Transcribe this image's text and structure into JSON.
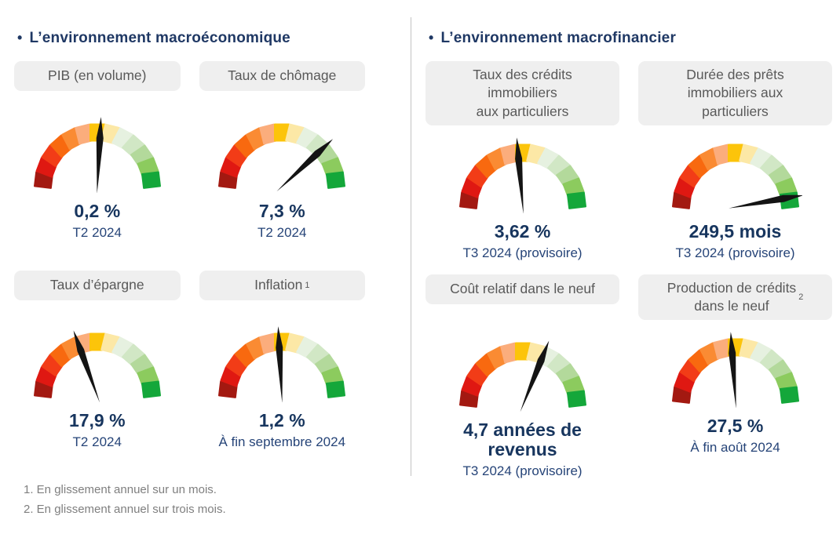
{
  "palette": {
    "background": "#FFFFFF",
    "title_navy": "#1F3864",
    "value_navy": "#17355E",
    "period_navy": "#264478",
    "chip_bg": "#EFEFEF",
    "chip_text": "#595959",
    "footnote_gray": "#7F7F7F",
    "divider_gray": "#C3C3C3",
    "needle_black": "#141414",
    "gauge_segments": [
      "#A31911",
      "#DF1812",
      "#F23C17",
      "#F8690F",
      "#FA8B33",
      "#FBAD7C",
      "#FCC40A",
      "#FCE8A6",
      "#E6F1E0",
      "#D1E7C5",
      "#B3D99B",
      "#8CCB5E",
      "#14A73A"
    ]
  },
  "sections": [
    {
      "bullet": "•",
      "title": "L’environnement macroéconomique"
    },
    {
      "bullet": "•",
      "title": "L’environnement macrofinancier"
    }
  ],
  "footnotes": [
    "1. En glissement annuel sur un mois.",
    "2. En glissement annuel sur trois mois."
  ],
  "chart_data": [
    {
      "type": "gauge",
      "title": "PIB (en volume)",
      "display_label": "PIB (en volume)",
      "label_sup": "",
      "value_text": "0,2 %",
      "value": 0.2,
      "unit": "%",
      "period": "T2 2024",
      "needle_deg_from_vertical": 3,
      "segment_count": 13,
      "scale": "rouge (défavorable) → vert (favorable), demi-cercle 180°"
    },
    {
      "type": "gauge",
      "title": "Taux de chômage",
      "display_label": "Taux de chômage",
      "label_sup": "",
      "value_text": "7,3 %",
      "value": 7.3,
      "unit": "%",
      "period": "T2 2024",
      "needle_deg_from_vertical": 47,
      "segment_count": 13,
      "scale": "rouge (défavorable) → vert (favorable), demi-cercle 180°"
    },
    {
      "type": "gauge",
      "title": "Taux d’épargne",
      "display_label": "Taux d’épargne",
      "label_sup": "",
      "value_text": "17,9 %",
      "value": 17.9,
      "unit": "%",
      "period": "T2 2024",
      "needle_deg_from_vertical": -20,
      "segment_count": 13,
      "scale": "rouge (défavorable) → vert (favorable), demi-cercle 180°"
    },
    {
      "type": "gauge",
      "title": "Inflation",
      "display_label": "Inflation",
      "label_sup": "1",
      "value_text": "1,2 %",
      "value": 1.2,
      "unit": "%",
      "period": "À fin septembre 2024",
      "needle_deg_from_vertical": -3,
      "segment_count": 13,
      "scale": "rouge (défavorable) → vert (favorable), demi-cercle 180°"
    },
    {
      "type": "gauge",
      "title": "Taux des crédits immobiliers aux particuliers",
      "display_label": "Taux des crédits\nimmobiliers\naux particuliers",
      "label_sup": "",
      "value_text": "3,62 %",
      "value": 3.62,
      "unit": "%",
      "period": "T3 2024 (provisoire)",
      "needle_deg_from_vertical": -5,
      "segment_count": 13,
      "scale": "rouge (défavorable) → vert (favorable), demi-cercle 180°"
    },
    {
      "type": "gauge",
      "title": "Durée des prêts immobiliers aux particuliers",
      "display_label": "Durée des prêts\nimmobiliers aux\nparticuliers",
      "label_sup": "",
      "value_text": "249,5 mois",
      "value": 249.5,
      "unit": "mois",
      "period": "T3 2024 (provisoire)",
      "needle_deg_from_vertical": 80,
      "segment_count": 13,
      "scale": "rouge (défavorable) → vert (favorable), demi-cercle 180°"
    },
    {
      "type": "gauge",
      "title": "Coût relatif dans le neuf",
      "display_label": "Coût relatif dans le neuf",
      "label_sup": "",
      "value_text": "4,7 années de\nrevenus",
      "value": 4.7,
      "unit": "années de revenus",
      "period": "T3 2024 (provisoire)",
      "needle_deg_from_vertical": 22,
      "segment_count": 13,
      "scale": "rouge (défavorable) → vert (favorable), demi-cercle 180°"
    },
    {
      "type": "gauge",
      "title": "Production de crédits dans le neuf",
      "display_label": "Production de crédits\ndans le neuf",
      "label_sup": "2",
      "value_text": "27,5 %",
      "value": 27.5,
      "unit": "%",
      "period": "À fin août 2024",
      "needle_deg_from_vertical": -4,
      "segment_count": 13,
      "scale": "rouge (défavorable) → vert (favorable), demi-cercle 180°"
    }
  ]
}
